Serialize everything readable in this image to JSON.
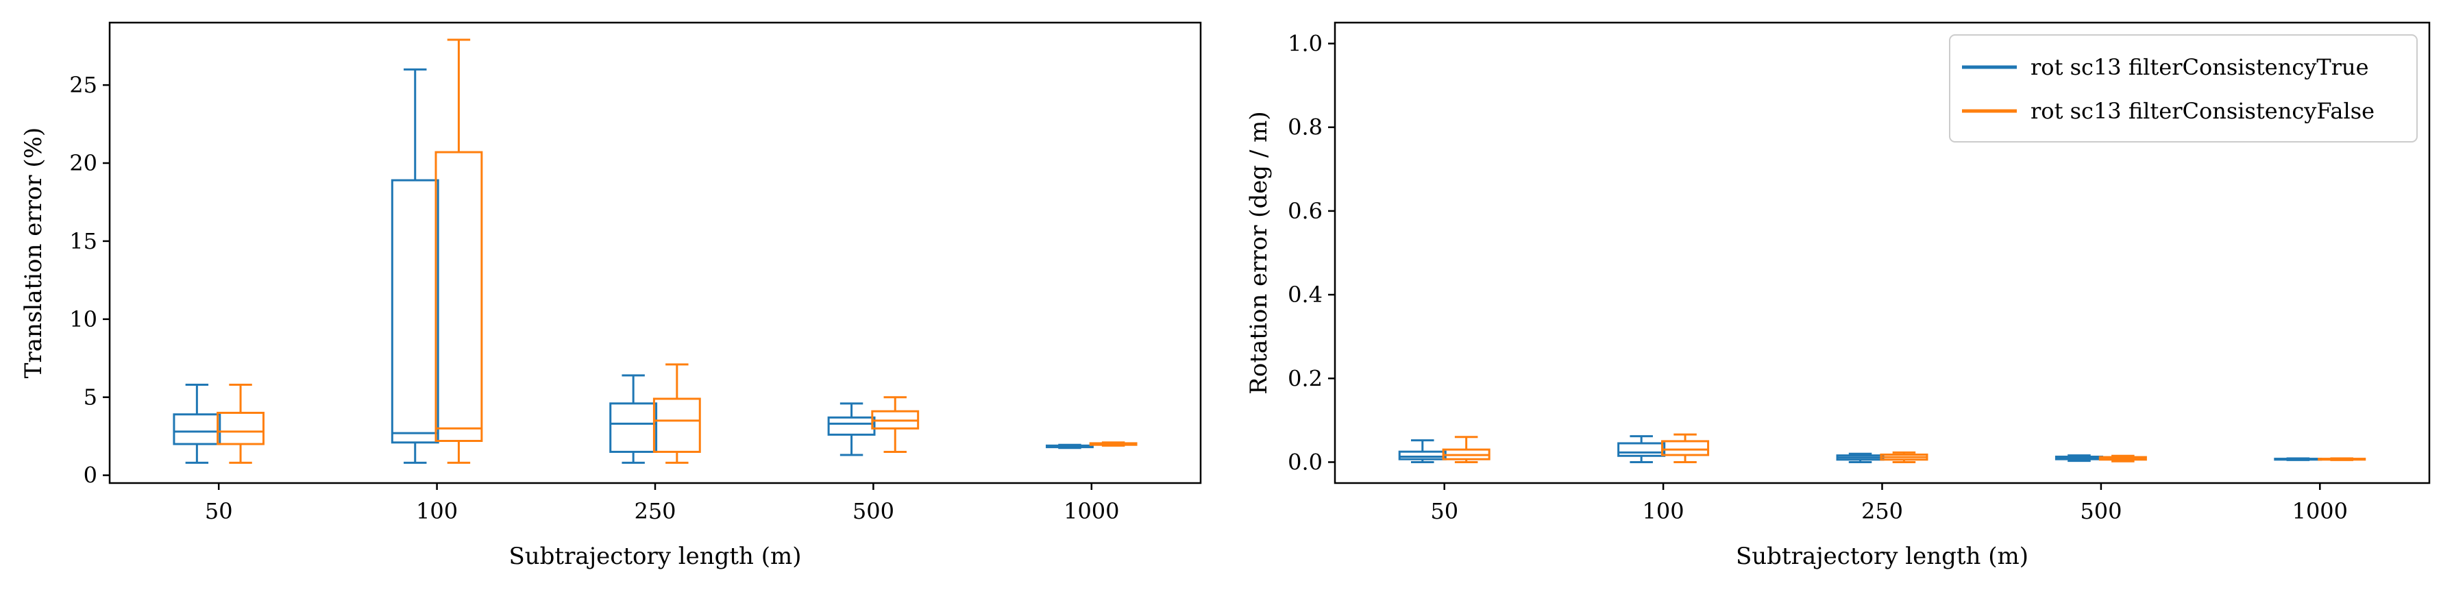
{
  "chart_data": [
    {
      "type": "box",
      "xlabel": "Subtrajectory length (m)",
      "ylabel": "Translation error (%)",
      "categories": [
        "50",
        "100",
        "250",
        "500",
        "1000"
      ],
      "ylim": [
        -0.5,
        29.0
      ],
      "yticks": [
        0,
        5,
        10,
        15,
        20,
        25
      ],
      "legend": null,
      "series": [
        {
          "color": "#1f77b4",
          "boxes": [
            {
              "whislo": 0.8,
              "q1": 2.0,
              "med": 2.8,
              "q3": 3.9,
              "whishi": 5.8
            },
            {
              "whislo": 0.8,
              "q1": 2.1,
              "med": 2.7,
              "q3": 18.9,
              "whishi": 26.0
            },
            {
              "whislo": 0.8,
              "q1": 1.5,
              "med": 3.3,
              "q3": 4.6,
              "whishi": 6.4
            },
            {
              "whislo": 1.3,
              "q1": 2.6,
              "med": 3.3,
              "q3": 3.7,
              "whishi": 4.6
            },
            {
              "whislo": 1.75,
              "q1": 1.8,
              "med": 1.85,
              "q3": 1.9,
              "whishi": 1.95
            }
          ]
        },
        {
          "color": "#ff7f0e",
          "boxes": [
            {
              "whislo": 0.8,
              "q1": 2.0,
              "med": 2.8,
              "q3": 4.0,
              "whishi": 5.8
            },
            {
              "whislo": 0.8,
              "q1": 2.2,
              "med": 3.0,
              "q3": 20.7,
              "whishi": 27.9
            },
            {
              "whislo": 0.8,
              "q1": 1.5,
              "med": 3.5,
              "q3": 4.9,
              "whishi": 7.1
            },
            {
              "whislo": 1.5,
              "q1": 3.0,
              "med": 3.5,
              "q3": 4.1,
              "whishi": 5.0
            },
            {
              "whislo": 1.9,
              "q1": 1.95,
              "med": 2.0,
              "q3": 2.05,
              "whishi": 2.1
            }
          ]
        }
      ]
    },
    {
      "type": "box",
      "xlabel": "Subtrajectory length (m)",
      "ylabel": "Rotation error (deg / m)",
      "categories": [
        "50",
        "100",
        "250",
        "500",
        "1000"
      ],
      "ylim": [
        -0.05,
        1.05
      ],
      "yticks": [
        0.0,
        0.2,
        0.4,
        0.6,
        0.8,
        1.0
      ],
      "ytick_labels": [
        "0.0",
        "0.2",
        "0.4",
        "0.6",
        "0.8",
        "1.0"
      ],
      "legend": "top-right",
      "series": [
        {
          "name": "rot sc13 filterConsistencyTrue",
          "color": "#1f77b4",
          "boxes": [
            {
              "whislo": 0.0,
              "q1": 0.007,
              "med": 0.013,
              "q3": 0.025,
              "whishi": 0.052
            },
            {
              "whislo": 0.0,
              "q1": 0.015,
              "med": 0.023,
              "q3": 0.045,
              "whishi": 0.062
            },
            {
              "whislo": 0.0,
              "q1": 0.006,
              "med": 0.011,
              "q3": 0.016,
              "whishi": 0.02
            },
            {
              "whislo": 0.003,
              "q1": 0.007,
              "med": 0.01,
              "q3": 0.013,
              "whishi": 0.016
            },
            {
              "whislo": 0.005,
              "q1": 0.006,
              "med": 0.007,
              "q3": 0.008,
              "whishi": 0.009
            }
          ]
        },
        {
          "name": "rot sc13 filterConsistencyFalse",
          "color": "#ff7f0e",
          "boxes": [
            {
              "whislo": 0.0,
              "q1": 0.007,
              "med": 0.017,
              "q3": 0.03,
              "whishi": 0.06
            },
            {
              "whislo": 0.0,
              "q1": 0.017,
              "med": 0.03,
              "q3": 0.05,
              "whishi": 0.066
            },
            {
              "whislo": 0.0,
              "q1": 0.006,
              "med": 0.012,
              "q3": 0.018,
              "whishi": 0.023
            },
            {
              "whislo": 0.002,
              "q1": 0.006,
              "med": 0.009,
              "q3": 0.012,
              "whishi": 0.015
            },
            {
              "whislo": 0.005,
              "q1": 0.006,
              "med": 0.007,
              "q3": 0.008,
              "whishi": 0.009
            }
          ]
        }
      ]
    }
  ]
}
